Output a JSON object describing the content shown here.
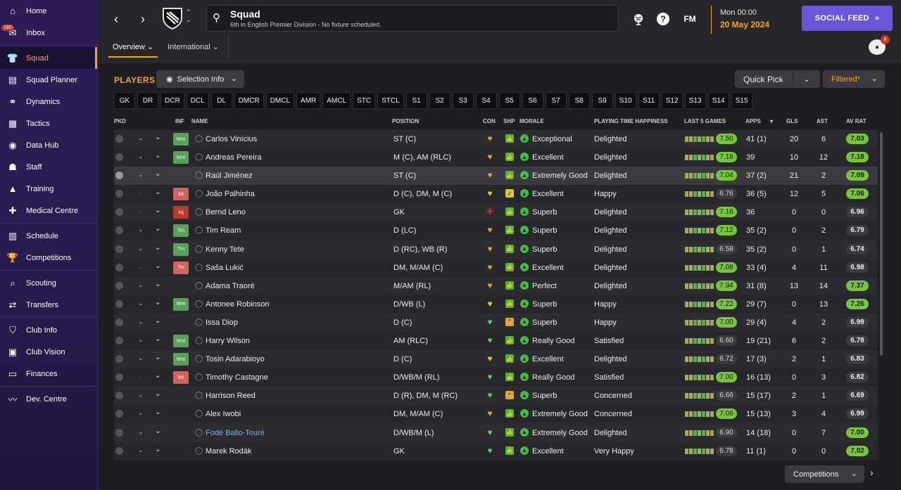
{
  "sidebar": {
    "items": [
      {
        "label": "Home",
        "icon": "home-icon"
      },
      {
        "label": "Inbox",
        "icon": "inbox-icon",
        "badge": "180"
      },
      {
        "label": "Squad",
        "icon": "squad-icon",
        "active": true
      },
      {
        "label": "Squad Planner",
        "icon": "planner-icon"
      },
      {
        "label": "Dynamics",
        "icon": "dynamics-icon"
      },
      {
        "label": "Tactics",
        "icon": "tactics-icon"
      },
      {
        "label": "Data Hub",
        "icon": "datahub-icon"
      },
      {
        "label": "Staff",
        "icon": "staff-icon"
      },
      {
        "label": "Training",
        "icon": "training-icon"
      },
      {
        "label": "Medical Centre",
        "icon": "medical-icon"
      },
      {
        "label": "Schedule",
        "icon": "schedule-icon"
      },
      {
        "label": "Competitions",
        "icon": "trophy-icon"
      },
      {
        "label": "Scouting",
        "icon": "scouting-icon"
      },
      {
        "label": "Transfers",
        "icon": "transfers-icon"
      },
      {
        "label": "Club Info",
        "icon": "clubinfo-icon"
      },
      {
        "label": "Club Vision",
        "icon": "clubvision-icon"
      },
      {
        "label": "Finances",
        "icon": "finances-icon"
      },
      {
        "label": "Dev. Centre",
        "icon": "devcentre-icon"
      }
    ]
  },
  "header": {
    "title": "Squad",
    "subtitle": "6th in English Premier Division - No fixture scheduled.",
    "date_line1": "Mon 00:00",
    "date_line2": "20 May 2024",
    "social_feed": "SOCIAL FEED",
    "fm": "FM",
    "help": "?",
    "notif_count": "8",
    "tabs": [
      {
        "label": "Overview"
      },
      {
        "label": "International"
      }
    ]
  },
  "main": {
    "players_label": "PLAYERS",
    "selection_info": "Selection Info",
    "quick_pick": "Quick Pick",
    "filtered": "Filtered*",
    "competitions": "Competitions",
    "positions": [
      "GK",
      "DR",
      "DCR",
      "DCL",
      "DL",
      "DMCR",
      "DMCL",
      "AMR",
      "AMCL",
      "STC",
      "STCL",
      "S1",
      "S2",
      "S3",
      "S4",
      "S5",
      "S6",
      "S7",
      "S8",
      "S9",
      "S10",
      "S11",
      "S12",
      "S13",
      "S14",
      "S15"
    ],
    "columns": {
      "pkd": "PKD",
      "inf": "INF",
      "name": "NAME",
      "position": "POSITION",
      "con": "CON",
      "shp": "SHP",
      "morale": "MORALE",
      "pth": "PLAYING TIME HAPPINESS",
      "last5": "LAST 5 GAMES",
      "apps": "APPS",
      "gls": "GLS",
      "ast": "AST",
      "avrat": "AV RAT"
    },
    "rows": [
      {
        "name": "Carlos Vinícius",
        "inf": "Wnt",
        "pos": "ST (C)",
        "con": "gold",
        "shp": "g",
        "morale": "Exceptional",
        "pth": "Delighted",
        "last5": "7.50",
        "avg_hi": true,
        "apps": "41 (1)",
        "gls": "20",
        "ast": "6",
        "avrat": "7.03",
        "avr_hi": true,
        "dash": "-"
      },
      {
        "name": "Andreas Pereira",
        "inf": "Wnt",
        "pos": "M (C), AM (RLC)",
        "con": "gold",
        "shp": "g",
        "morale": "Excellent",
        "pth": "Delighted",
        "last5": "7.18",
        "avg_hi": true,
        "apps": "39",
        "gls": "10",
        "ast": "12",
        "avrat": "7.18",
        "avr_hi": true,
        "dash": "-"
      },
      {
        "name": "Raúl Jiménez",
        "inf": "",
        "pos": "ST (C)",
        "con": "gold",
        "shp": "g",
        "morale": "Extremely Good",
        "pth": "Delighted",
        "last5": "7.04",
        "avg_hi": true,
        "apps": "37 (2)",
        "gls": "21",
        "ast": "2",
        "avrat": "7.09",
        "avr_hi": true,
        "dash": "-",
        "sel": true
      },
      {
        "name": "João Palhinha",
        "inf": "Int",
        "pos": "D (C), DM, M (C)",
        "con": "yellow",
        "shp": "y",
        "morale": "Excellent",
        "pth": "Happy",
        "last5": "6.76",
        "avg_hi": false,
        "apps": "36 (5)",
        "gls": "12",
        "ast": "5",
        "avrat": "7.06",
        "avr_hi": true,
        "dash": "-",
        "dash_red": true
      },
      {
        "name": "Bernd Leno",
        "inf": "Inj",
        "pos": "GK",
        "con": "red",
        "shp": "g",
        "morale": "Superb",
        "pth": "Delighted",
        "last5": "7.16",
        "avg_hi": true,
        "apps": "36",
        "gls": "0",
        "ast": "0",
        "avrat": "6.96",
        "avr_hi": false,
        "dash": "-",
        "dash_red": true
      },
      {
        "name": "Tim Ream",
        "inf": "Trn",
        "pos": "D (LC)",
        "con": "gold",
        "shp": "g",
        "morale": "Superb",
        "pth": "Delighted",
        "last5": "7.12",
        "avg_hi": true,
        "apps": "35 (2)",
        "gls": "0",
        "ast": "2",
        "avrat": "6.79",
        "avr_hi": false,
        "dash": "-"
      },
      {
        "name": "Kenny Tete",
        "inf": "Trn",
        "pos": "D (RC), WB (R)",
        "con": "gold",
        "shp": "g",
        "morale": "Superb",
        "pth": "Delighted",
        "last5": "6.58",
        "avg_hi": false,
        "apps": "35 (2)",
        "gls": "0",
        "ast": "1",
        "avrat": "6.74",
        "avr_hi": false,
        "dash": "-"
      },
      {
        "name": "Saša Lukić",
        "inf": "Trv",
        "pos": "DM, M/AM (C)",
        "con": "gold",
        "shp": "g",
        "morale": "Excellent",
        "pth": "Delighted",
        "last5": "7.08",
        "avg_hi": true,
        "apps": "33 (4)",
        "gls": "4",
        "ast": "11",
        "avrat": "6.98",
        "avr_hi": false,
        "dash": "-",
        "dash_red": true
      },
      {
        "name": "Adama Traoré",
        "inf": "",
        "pos": "M/AM (RL)",
        "con": "gold",
        "shp": "g",
        "morale": "Perfect",
        "pth": "Delighted",
        "last5": "7.94",
        "avg_hi": true,
        "apps": "31 (8)",
        "gls": "13",
        "ast": "14",
        "avrat": "7.37",
        "avr_hi": true,
        "dash": "-"
      },
      {
        "name": "Antonee Robinson",
        "inf": "Wnt",
        "pos": "D/WB (L)",
        "con": "yellow",
        "shp": "g",
        "morale": "Superb",
        "pth": "Happy",
        "last5": "7.22",
        "avg_hi": true,
        "apps": "29 (7)",
        "gls": "0",
        "ast": "13",
        "avrat": "7.26",
        "avr_hi": true,
        "dash": "-"
      },
      {
        "name": "Issa Diop",
        "inf": "",
        "pos": "D (C)",
        "con": "green",
        "shp": "o",
        "morale": "Superb",
        "pth": "Happy",
        "last5": "7.00",
        "avg_hi": true,
        "apps": "29 (4)",
        "gls": "4",
        "ast": "2",
        "avrat": "6.99",
        "avr_hi": false,
        "dash": "-"
      },
      {
        "name": "Harry Wilson",
        "inf": "Wnt",
        "pos": "AM (RLC)",
        "con": "green",
        "shp": "g",
        "morale": "Really Good",
        "pth": "Satisfied",
        "last5": "6.60",
        "avg_hi": false,
        "apps": "19 (21)",
        "gls": "6",
        "ast": "2",
        "avrat": "6.78",
        "avr_hi": false,
        "dash": "-"
      },
      {
        "name": "Tosin Adarabioyo",
        "inf": "Wnt",
        "pos": "D (C)",
        "con": "yellow",
        "shp": "g",
        "morale": "Excellent",
        "pth": "Delighted",
        "last5": "6.72",
        "avg_hi": false,
        "apps": "17 (3)",
        "gls": "2",
        "ast": "1",
        "avrat": "6.83",
        "avr_hi": false,
        "dash": "-"
      },
      {
        "name": "Timothy Castagne",
        "inf": "Int",
        "pos": "D/WB/M (RL)",
        "con": "green",
        "shp": "g",
        "morale": "Really Good",
        "pth": "Satisfied",
        "last5": "7.00",
        "avg_hi": true,
        "apps": "16 (13)",
        "gls": "0",
        "ast": "3",
        "avrat": "6.82",
        "avr_hi": false,
        "dash": "-",
        "dash_red": true
      },
      {
        "name": "Harrison Reed",
        "inf": "",
        "pos": "D (R), DM, M (RC)",
        "con": "green",
        "shp": "o",
        "morale": "Superb",
        "pth": "Concerned",
        "last5": "6.66",
        "avg_hi": false,
        "apps": "15 (17)",
        "gls": "2",
        "ast": "1",
        "avrat": "6.69",
        "avr_hi": false,
        "dash": "-"
      },
      {
        "name": "Alex Iwobi",
        "inf": "",
        "pos": "DM, M/AM (C)",
        "con": "gold",
        "shp": "g",
        "morale": "Extremely Good",
        "pth": "Concerned",
        "last5": "7.06",
        "avg_hi": true,
        "apps": "15 (13)",
        "gls": "3",
        "ast": "4",
        "avrat": "6.99",
        "avr_hi": false,
        "dash": "-"
      },
      {
        "name": "Fodé Ballo-Touré",
        "inf": "",
        "pos": "D/WB/M (L)",
        "con": "green",
        "shp": "g",
        "morale": "Extremely Good",
        "pth": "Delighted",
        "last5": "6.90",
        "avg_hi": false,
        "apps": "14 (18)",
        "gls": "0",
        "ast": "7",
        "avrat": "7.00",
        "avr_hi": true,
        "dash": "-",
        "link": true
      },
      {
        "name": "Marek Rodák",
        "inf": "",
        "pos": "GK",
        "con": "green",
        "shp": "g",
        "morale": "Excellent",
        "pth": "Very Happy",
        "last5": "6.78",
        "avg_hi": false,
        "apps": "11 (1)",
        "gls": "0",
        "ast": "0",
        "avrat": "7.02",
        "avr_hi": true,
        "dash": "-"
      }
    ]
  },
  "colors": {
    "accent": "#f5a623",
    "sidebar": "#2c1a55",
    "social": "#6b55d9",
    "good": "#78c43c"
  }
}
